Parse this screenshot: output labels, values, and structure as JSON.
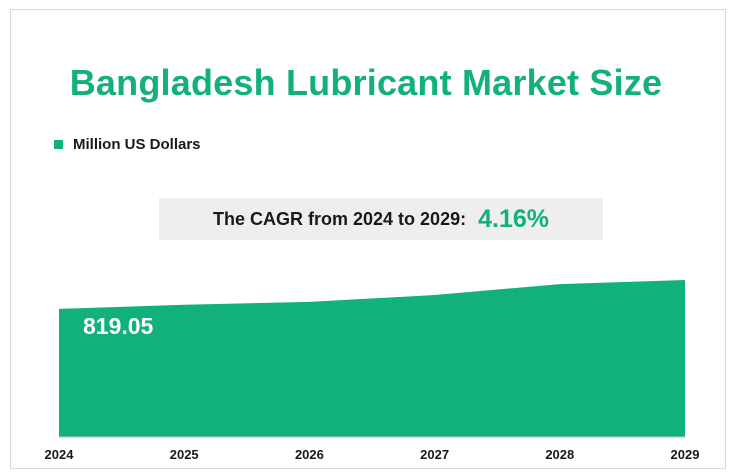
{
  "title": "Bangladesh Lubricant Market Size",
  "legend": {
    "label": "Million US Dollars",
    "color": "#12b07a"
  },
  "cagr": {
    "label": "The CAGR from 2024 to 2029",
    "separator": ":",
    "value": "4.16%"
  },
  "chart_data": {
    "type": "area",
    "title": "Bangladesh Lubricant Market Size",
    "categories": [
      "2024",
      "2025",
      "2026",
      "2027",
      "2028",
      "2029"
    ],
    "series": [
      {
        "name": "Million US Dollars",
        "values": [
          819.05,
          846,
          864,
          908,
          978,
          1004
        ]
      }
    ],
    "data_labels": [
      {
        "category": "2024",
        "text": "819.05"
      }
    ],
    "ylim": [
      0,
      1004
    ],
    "grid": false,
    "legend_position": "top-left",
    "colors": {
      "fill": "#12b07a",
      "baseline": "#bfbfbf"
    }
  }
}
